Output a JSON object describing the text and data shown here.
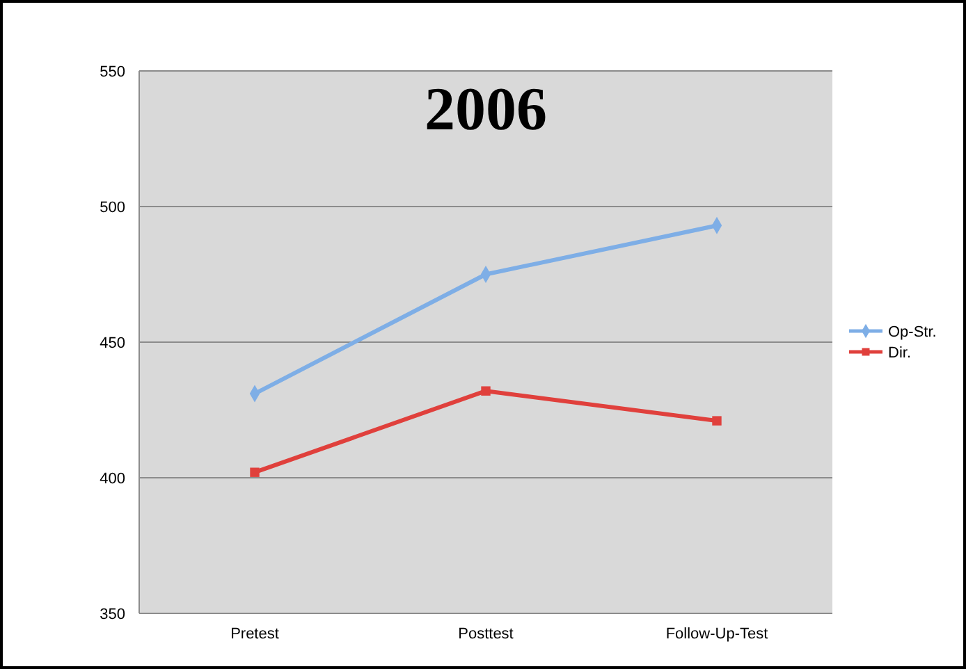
{
  "chart_data": {
    "type": "line",
    "title": "2006",
    "categories": [
      "Pretest",
      "Posttest",
      "Follow-Up-Test"
    ],
    "series": [
      {
        "name": "Op-Str.",
        "color": "#7eaee6",
        "values": [
          431,
          475,
          493
        ],
        "marker": "diamond"
      },
      {
        "name": "Dir.",
        "color": "#e0403c",
        "values": [
          402,
          432,
          421
        ],
        "marker": "square"
      }
    ],
    "ylim": [
      350,
      550
    ],
    "yticks": [
      350,
      400,
      450,
      500,
      550
    ],
    "grid": "y",
    "legend": "right"
  }
}
